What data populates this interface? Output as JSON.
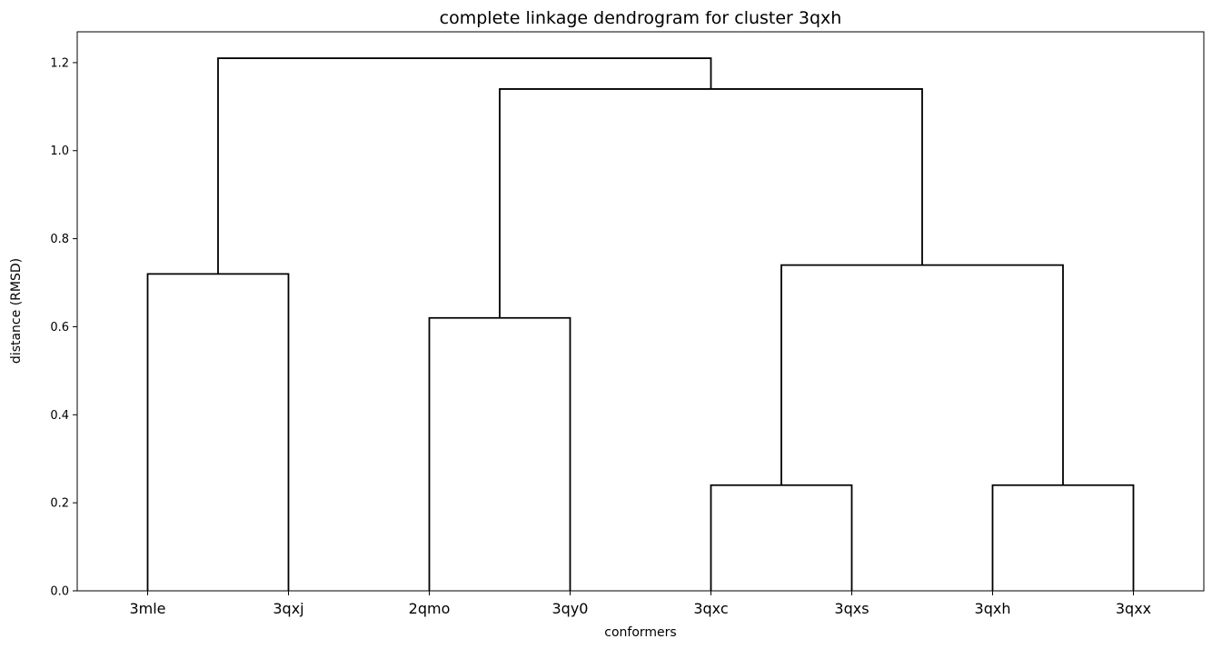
{
  "chart_data": {
    "type": "dendrogram",
    "title": "complete linkage dendrogram for cluster 3qxh",
    "xlabel": "conformers",
    "ylabel": "distance (RMSD)",
    "ylim": [
      0,
      1.27
    ],
    "yticks": [
      "0.0",
      "0.2",
      "0.4",
      "0.6",
      "0.8",
      "1.0",
      "1.2"
    ],
    "ytick_values": [
      0,
      0.2,
      0.4,
      0.6,
      0.8,
      1.0,
      1.2
    ],
    "leaves": [
      "3mle",
      "3qxj",
      "2qmo",
      "3qy0",
      "3qxc",
      "3qxs",
      "3qxh",
      "3qxx"
    ],
    "merges": [
      {
        "left": "3mle",
        "right": "3qxj",
        "height": 0.72
      },
      {
        "left": "2qmo",
        "right": "3qy0",
        "height": 0.62
      },
      {
        "left": "3qxc",
        "right": "3qxs",
        "height": 0.24
      },
      {
        "left": "3qxh",
        "right": "3qxx",
        "height": 0.24
      },
      {
        "left": "(3qxc,3qxs)",
        "right": "(3qxh,3qxx)",
        "height": 0.74
      },
      {
        "left": "(2qmo,3qy0)",
        "right": "((3qxc,3qxs),(3qxh,3qxx))",
        "height": 1.14
      },
      {
        "left": "(3mle,3qxj)",
        "right": "((2qmo,3qy0),((3qxc,3qxs),(3qxh,3qxx)))",
        "height": 1.21
      }
    ],
    "link_color": "#000000",
    "grid": false,
    "legend": "none"
  }
}
